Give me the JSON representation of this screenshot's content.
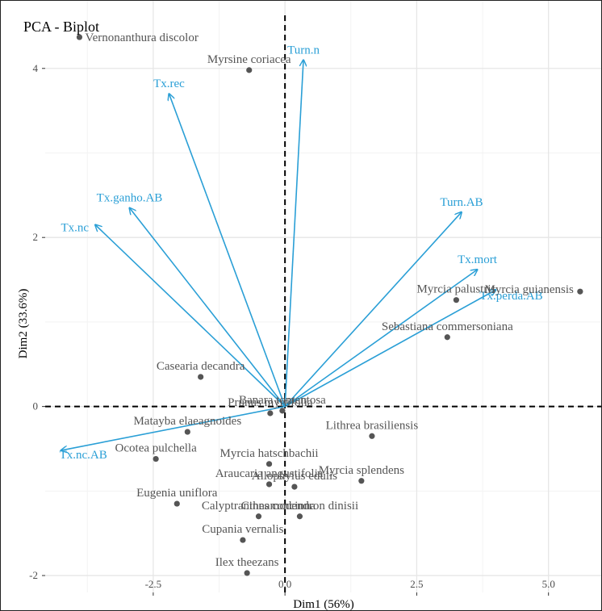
{
  "chart_data": {
    "type": "scatter",
    "title": "PCA - Biplot",
    "xlabel": "Dim1 (56%)",
    "ylabel": "Dim2 (33.6%)",
    "xlim": [
      -4.55,
      6.0
    ],
    "ylim": [
      -2.2,
      4.8
    ],
    "x_ticks": [
      -2.5,
      0.0,
      2.5,
      5.0
    ],
    "x_tick_labels": [
      "-2.5",
      "0.0",
      "2.5",
      "5.0"
    ],
    "y_ticks": [
      -2,
      0,
      2,
      4
    ],
    "y_tick_labels": [
      "-2",
      "0",
      "2",
      "4"
    ],
    "grid": true,
    "colors": {
      "points": "#555555",
      "arrows": "#2a9fd6",
      "grid_major": "#e6e6e6",
      "grid_minor": "#f3f3f3",
      "axis_text": "#4d4d4d"
    },
    "points": [
      {
        "label": "Vernonanthura discolor",
        "x": -3.9,
        "y": 4.37
      },
      {
        "label": "Myrsine coriacea",
        "x": -0.68,
        "y": 3.98
      },
      {
        "label": "Myrcia guianensis",
        "x": 5.6,
        "y": 1.36
      },
      {
        "label": "Myrcia palustris",
        "x": 3.25,
        "y": 1.26
      },
      {
        "label": "Sebastiana commersoniana",
        "x": 3.08,
        "y": 0.82
      },
      {
        "label": "Casearia decandra",
        "x": -1.6,
        "y": 0.35
      },
      {
        "label": "Banara tomentosa",
        "x": -0.05,
        "y": -0.05
      },
      {
        "label": "Prunus myrtifolia",
        "x": -0.28,
        "y": -0.08
      },
      {
        "label": "Matayba elaeagnoides",
        "x": -1.85,
        "y": -0.3
      },
      {
        "label": "Lithrea brasiliensis",
        "x": 1.65,
        "y": -0.35
      },
      {
        "label": "Ocotea pulchella",
        "x": -2.45,
        "y": -0.62
      },
      {
        "label": "Myrcia hatschbachii",
        "x": -0.3,
        "y": -0.68
      },
      {
        "label": "Myrcia splendens",
        "x": 1.45,
        "y": -0.88
      },
      {
        "label": "Araucaria angustifolia",
        "x": -0.3,
        "y": -0.92
      },
      {
        "label": "Allophylus edulis",
        "x": 0.18,
        "y": -0.95
      },
      {
        "label": "Eugenia uniflora",
        "x": -2.05,
        "y": -1.15
      },
      {
        "label": "Calyptranthes concinna",
        "x": -0.5,
        "y": -1.3
      },
      {
        "label": "Cinnamodendron dinisii",
        "x": 0.28,
        "y": -1.3
      },
      {
        "label": "Cupania vernalis",
        "x": -0.8,
        "y": -1.58
      },
      {
        "label": "Ilex theezans",
        "x": -0.72,
        "y": -1.97
      }
    ],
    "arrows": [
      {
        "label": "Turn.n",
        "x": 0.35,
        "y": 4.1
      },
      {
        "label": "Tx.rec",
        "x": -2.2,
        "y": 3.7
      },
      {
        "label": "Tx.ganho.AB",
        "x": -2.95,
        "y": 2.35
      },
      {
        "label": "Tx.nc",
        "x": -3.6,
        "y": 2.15
      },
      {
        "label": "Turn.AB",
        "x": 3.35,
        "y": 2.3
      },
      {
        "label": "Tx.mort",
        "x": 3.65,
        "y": 1.62
      },
      {
        "label": "Tx.perda.AB",
        "x": 4.0,
        "y": 1.38
      },
      {
        "label": "Tx.nc.AB",
        "x": -4.25,
        "y": -0.52
      }
    ]
  }
}
